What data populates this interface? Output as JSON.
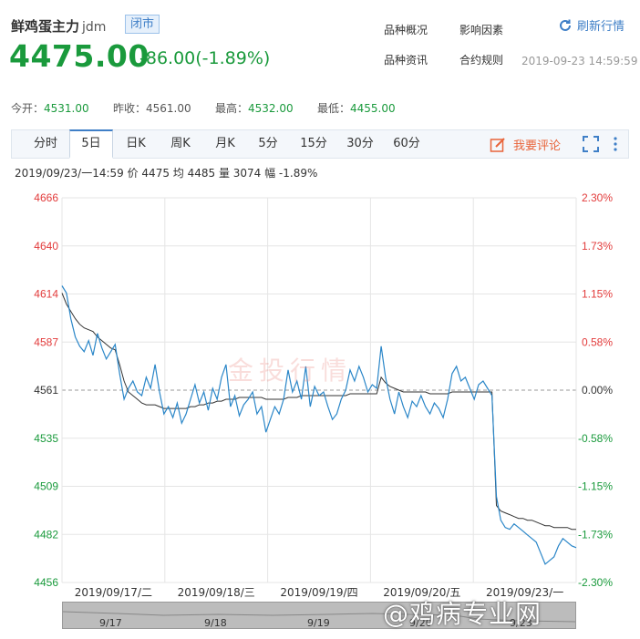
{
  "header": {
    "name": "鲜鸡蛋主力",
    "code": "jdm",
    "status": "闭市",
    "price": "4475.00",
    "change": "-86.00(-1.89%)",
    "links": [
      "品种概况",
      "影响因素",
      "品种资讯",
      "合约规则"
    ],
    "refresh_label": "刷新行情",
    "timestamp": "2019-09-23 14:59:59"
  },
  "stats": {
    "open_label": "今开：",
    "open": "4531.00",
    "prev_label": "昨收：",
    "prev": "4561.00",
    "high_label": "最高：",
    "high": "4532.00",
    "low_label": "最低：",
    "low": "4455.00"
  },
  "tabs": [
    "分时",
    "5日",
    "日K",
    "周K",
    "月K",
    "5分",
    "15分",
    "30分",
    "60分"
  ],
  "active_tab": "5日",
  "comment_label": "我要评论",
  "info_line": "2019/09/23/一14:59  价 4475  均 4485  量 3074  幅 -1.89%",
  "colors": {
    "up": "#e23b3b",
    "down": "#1a9a3c",
    "price_line": "#2a86c8",
    "avg_line": "#333333",
    "grid": "#e5e5e5"
  },
  "navigator_ticks": [
    "9/17",
    "9/18",
    "9/19",
    "9/20",
    "9/23"
  ],
  "watermark": "@鸡病专业网",
  "chart_watermark": "金投行情",
  "chart_data": {
    "type": "line",
    "title": "",
    "xlabel": "",
    "ylabel": "",
    "ylim": [
      4456,
      4666
    ],
    "y_ticks_left": [
      "4666",
      "4640",
      "4614",
      "4587",
      "4561",
      "4535",
      "4509",
      "4482",
      "4456"
    ],
    "y_ticks_right": [
      "2.30%",
      "1.73%",
      "1.15%",
      "0.58%",
      "0.00%",
      "-0.58%",
      "-1.15%",
      "-1.73%",
      "-2.30%"
    ],
    "reference_value": 4561,
    "x_labels": [
      "2019/09/17/二",
      "2019/09/18/三",
      "2019/09/19/四",
      "2019/09/20/五",
      "2019/09/23/一"
    ],
    "series": [
      {
        "values": [
          4618,
          4614,
          4600,
          4590,
          4585,
          4582,
          4588,
          4580,
          4592,
          4584,
          4578,
          4582,
          4586,
          4570,
          4556,
          4562,
          4566,
          4560,
          4558,
          4568,
          4562,
          4575,
          4560,
          4548,
          4552,
          4546,
          4554,
          4543,
          4548,
          4556,
          4564,
          4554,
          4560,
          4550,
          4562,
          4556,
          4568,
          4575,
          4552,
          4558,
          4547,
          4553,
          4556,
          4560,
          4548,
          4552,
          4538,
          4545,
          4552,
          4548,
          4556,
          4572,
          4560,
          4566,
          4556,
          4574,
          4552,
          4563,
          4558,
          4560,
          4552,
          4545,
          4548,
          4556,
          4561,
          4572,
          4566,
          4574,
          4568,
          4560,
          4564,
          4562,
          4585,
          4568,
          4556,
          4548,
          4560,
          4552,
          4546,
          4555,
          4552,
          4558,
          4552,
          4548,
          4554,
          4551,
          4546,
          4556,
          4570,
          4574,
          4566,
          4568,
          4562,
          4556,
          4564,
          4566,
          4562,
          4558,
          4503,
          4490,
          4486,
          4485,
          4488,
          4486,
          4484,
          4482,
          4480,
          4478,
          4472,
          4466,
          4468,
          4470,
          4476,
          4480,
          4478,
          4476,
          4475
        ],
        "average": [
          4614,
          4608,
          4604,
          4600,
          4597,
          4595,
          4594,
          4593,
          4590,
          4588,
          4586,
          4584,
          4583,
          4575,
          4566,
          4560,
          4558,
          4556,
          4554,
          4553,
          4553,
          4553,
          4552,
          4551,
          4551,
          4551,
          4551,
          4551,
          4551,
          4552,
          4552,
          4553,
          4553,
          4554,
          4554,
          4555,
          4555,
          4556,
          4556,
          4556,
          4557,
          4557,
          4557,
          4557,
          4557,
          4557,
          4556,
          4556,
          4556,
          4556,
          4556,
          4557,
          4557,
          4557,
          4558,
          4558,
          4558,
          4558,
          4558,
          4558,
          4558,
          4558,
          4558,
          4558,
          4558,
          4559,
          4559,
          4559,
          4559,
          4559,
          4559,
          4559,
          4568,
          4565,
          4563,
          4562,
          4561,
          4560,
          4560,
          4560,
          4560,
          4560,
          4560,
          4559,
          4559,
          4559,
          4559,
          4559,
          4560,
          4560,
          4560,
          4560,
          4560,
          4560,
          4560,
          4560,
          4560,
          4560,
          4498,
          4495,
          4494,
          4493,
          4492,
          4491,
          4491,
          4490,
          4490,
          4489,
          4488,
          4487,
          4487,
          4486,
          4486,
          4486,
          4486,
          4485,
          4485
        ]
      }
    ],
    "grid": true,
    "legend": "none"
  }
}
